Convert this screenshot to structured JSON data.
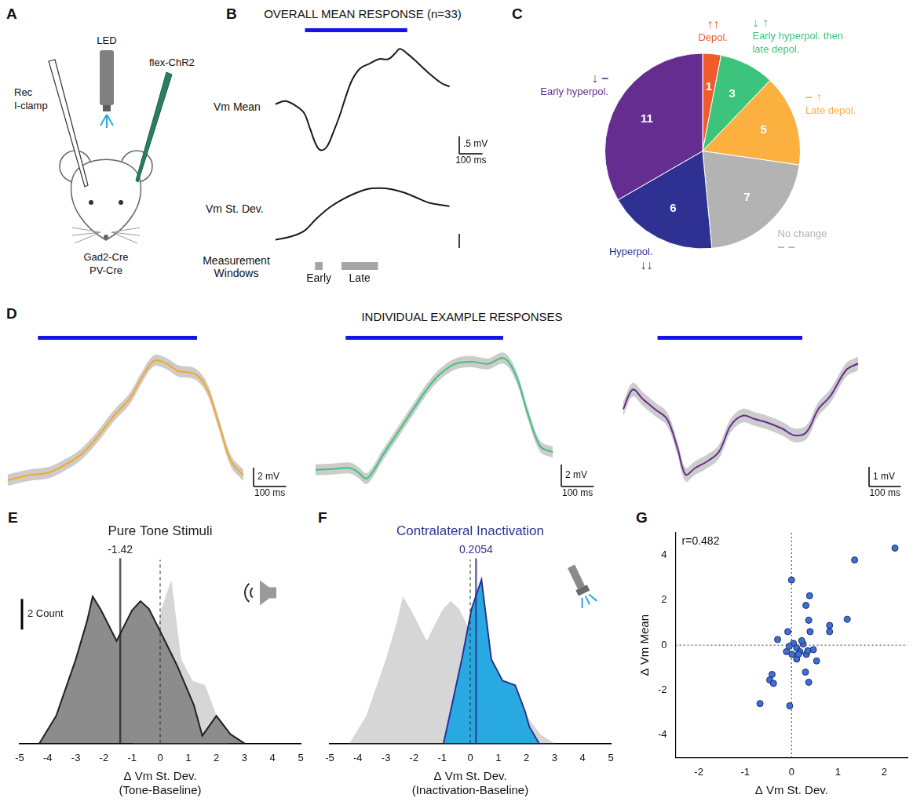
{
  "chart_data": [
    {
      "panel": "A",
      "type": "diagram",
      "labels": {
        "recording": [
          "Rec",
          "I-clamp"
        ],
        "light": "LED",
        "virus": "flex-ChR2",
        "mouse": [
          "Gad2-Cre",
          "PV-Cre"
        ]
      }
    },
    {
      "panel": "B",
      "type": "line",
      "title": "OVERALL MEAN RESPONSE (n=33)",
      "tick_labels": false,
      "xlim": [
        -130,
        630
      ],
      "stimulus": [
        0,
        440
      ],
      "series": [
        {
          "name": "Vm Mean",
          "color": "#1a1a1a",
          "ylim": [
            -1.5,
            1.8
          ],
          "x": [
            -127,
            -86,
            -46,
            -5,
            22,
            49,
            70,
            95,
            122,
            149,
            176,
            203,
            238,
            278,
            319,
            359,
            386,
            408,
            441,
            481,
            535,
            589,
            622
          ],
          "values": [
            0,
            0.09,
            -0.02,
            -0.24,
            -0.7,
            -1.17,
            -1.31,
            -1.2,
            -0.8,
            -0.33,
            0.22,
            0.69,
            1.02,
            1.15,
            1.28,
            1.28,
            1.43,
            1.57,
            1.43,
            1.2,
            0.87,
            0.59,
            0.5
          ],
          "scale_bar": {
            "x": 100,
            "y": 0.5,
            "x_label": "100 ms",
            "y_label": ".5 mV"
          }
        },
        {
          "name": "Vm St. Dev.",
          "color": "#1a1a1a",
          "ylim": [
            0.8,
            2.1
          ],
          "x": [
            -127,
            -59,
            -5,
            49,
            103,
            157,
            211,
            265,
            319,
            373,
            427,
            481,
            535,
            622
          ],
          "values": [
            1.0,
            1.06,
            1.15,
            1.37,
            1.56,
            1.7,
            1.81,
            1.89,
            1.91,
            1.89,
            1.83,
            1.74,
            1.65,
            1.59
          ],
          "scale_bar": {
            "y": 0.25
          }
        }
      ],
      "windows_label": "Measurement Windows",
      "windows": [
        {
          "name": "Early",
          "range": [
            43,
            76
          ]
        },
        {
          "name": "Late",
          "range": [
            157,
            314
          ]
        }
      ]
    },
    {
      "panel": "C",
      "type": "pie",
      "data_labels": true,
      "categories": [
        "Depol.",
        "Early hyperpol. then late depol.",
        "Late depol.",
        "No change",
        "Hyperpol.",
        "Early hyperpol."
      ],
      "values": [
        1,
        3,
        5,
        7,
        6,
        11
      ],
      "colors": [
        "#f15a2b",
        "#3cc47c",
        "#fbb040",
        "#b3b3b3",
        "#2e3192",
        "#662d91"
      ],
      "arrows": [
        "↑↑",
        "↓ ↑",
        "– ↑",
        "– –",
        "↓↓",
        "↓ –"
      ]
    },
    {
      "panel": "D",
      "type": "line",
      "title": "INDIVIDUAL EXAMPLE RESPONSES",
      "tick_labels": false,
      "charts": [
        {
          "color": "#f7a823",
          "stimulus": [
            0,
            490
          ],
          "xlim": [
            -95,
            640
          ],
          "ylim": [
            -1,
            14
          ],
          "x": [
            -93,
            -30,
            33,
            83,
            133,
            183,
            233,
            283,
            320,
            358,
            395,
            433,
            483,
            520,
            558,
            595,
            633
          ],
          "values": [
            0,
            0.52,
            0.81,
            1.63,
            2.74,
            4.59,
            6.81,
            8.67,
            10.9,
            12.7,
            12.4,
            11.6,
            11.3,
            9.8,
            5.9,
            2,
            0.52
          ],
          "error": [
            0.6,
            0.6,
            0.6,
            0.6,
            0.6,
            0.6,
            0.6,
            0.6,
            0.6,
            0.6,
            0.6,
            0.6,
            0.6,
            0.6,
            0.6,
            0.6,
            0.6
          ],
          "scale_bar": {
            "x": 100,
            "y": 2,
            "x_label": "100 ms",
            "y_label": "2 mV"
          }
        },
        {
          "color": "#3cc47c",
          "stimulus": [
            0,
            485
          ],
          "xlim": [
            -95,
            640
          ],
          "ylim": [
            -1.8,
            11
          ],
          "x": [
            -93,
            -38,
            13,
            38,
            63,
            83,
            113,
            163,
            213,
            250,
            288,
            338,
            388,
            438,
            488,
            525,
            563,
            600,
            638
          ],
          "values": [
            0,
            0.07,
            0.15,
            -0.22,
            -0.81,
            -0.22,
            1.26,
            3.48,
            5.7,
            7.3,
            8.6,
            9.6,
            9.8,
            9.6,
            10.1,
            8.5,
            4.9,
            2.1,
            1.6
          ],
          "error": [
            0.5,
            0.5,
            0.5,
            0.5,
            0.5,
            0.5,
            0.5,
            0.5,
            0.5,
            0.5,
            0.5,
            0.5,
            0.5,
            0.5,
            0.5,
            0.5,
            0.5,
            0.5,
            0.5
          ],
          "scale_bar": {
            "x": 100,
            "y": 2,
            "x_label": "100 ms",
            "y_label": "2 mV"
          }
        },
        {
          "color": "#662d91",
          "stimulus": [
            0,
            455
          ],
          "xlim": [
            -110,
            640
          ],
          "ylim": [
            -3.6,
            3.6
          ],
          "x": [
            -108,
            -78,
            -45,
            -8,
            30,
            63,
            88,
            118,
            155,
            193,
            230,
            268,
            305,
            343,
            393,
            430,
            468,
            505,
            543,
            593,
            630
          ],
          "values": [
            0.5,
            1.5,
            1,
            0.5,
            0,
            -1.5,
            -2.83,
            -2.5,
            -2.17,
            -1.67,
            -0.33,
            0.17,
            0,
            -0.17,
            -0.5,
            -0.83,
            -0.67,
            0.5,
            1.17,
            2.5,
            2.83
          ],
          "error": [
            0.35,
            0.35,
            0.35,
            0.35,
            0.35,
            0.35,
            0.35,
            0.35,
            0.35,
            0.35,
            0.35,
            0.35,
            0.35,
            0.35,
            0.35,
            0.35,
            0.35,
            0.35,
            0.35,
            0.35,
            0.35
          ],
          "scale_bar": {
            "x": 100,
            "y": 1,
            "x_label": "100 ms",
            "y_label": "1 mV"
          }
        }
      ]
    },
    {
      "panel": "E",
      "type": "area",
      "title": "Pure Tone Stimuli",
      "color": "#222222",
      "x_label": "Δ Vm St. Dev. (Tone-Baseline)",
      "tick_labels": "x",
      "grid": false,
      "xlim": [
        -5,
        5
      ],
      "xticks": [
        -5,
        -4,
        -3,
        -2,
        -1,
        0,
        1,
        2,
        3,
        4,
        5
      ],
      "ylim": [
        0,
        12
      ],
      "mean": -1.42,
      "reference": 0,
      "scale_bar": {
        "y": 2,
        "y_label": "2 Count"
      },
      "series": [
        {
          "color": "#8c8c8c",
          "x": [
            -4.3,
            -3.7,
            -3,
            -2.6,
            -2.4,
            -2.1,
            -1.55,
            -1,
            -0.7,
            -0.4,
            0.17,
            0.6,
            1.2,
            1.5,
            2,
            2.5,
            3
          ],
          "values": [
            0,
            1.8,
            5.5,
            8,
            9.6,
            8.7,
            6.7,
            8.7,
            9.3,
            8.8,
            6.7,
            5.1,
            2.5,
            0.5,
            1.8,
            0.6,
            0
          ]
        },
        {
          "color": "#d6d6d6",
          "x": [
            -0.95,
            -0.7,
            -0.3,
            0.05,
            0.4,
            0.75,
            1.15,
            1.6,
            1.95,
            2.1,
            2.45
          ],
          "values": [
            0,
            2.1,
            5.5,
            8.8,
            10.7,
            5.5,
            4.1,
            3.8,
            2.1,
            1.1,
            0
          ]
        }
      ]
    },
    {
      "panel": "F",
      "type": "area",
      "title": "Contralateral Inactivation",
      "color": "#2e3192",
      "x_label": "Δ Vm St. Dev. (Inactivation-Baseline)",
      "tick_labels": "x",
      "grid": false,
      "xlim": [
        -5,
        5
      ],
      "xticks": [
        -5,
        -4,
        -3,
        -2,
        -1,
        0,
        1,
        2,
        3,
        4,
        5
      ],
      "ylim": [
        0,
        12
      ],
      "mean": 0.2054,
      "reference": 0,
      "series": [
        {
          "color": "#29a9e1",
          "x": [
            -0.95,
            -0.7,
            -0.3,
            0.05,
            0.4,
            0.75,
            1.15,
            1.6,
            1.95,
            2.1,
            2.45
          ],
          "values": [
            0,
            2.1,
            5.5,
            8.8,
            10.7,
            5.5,
            4.1,
            3.8,
            2.1,
            1.1,
            0
          ]
        },
        {
          "color": "#d6d6d6",
          "x": [
            -4.3,
            -3.7,
            -3,
            -2.6,
            -2.4,
            -2.1,
            -1.55,
            -1,
            -0.7,
            -0.4,
            0.17,
            0.6,
            1.2,
            1.5,
            2,
            2.5,
            3
          ],
          "values": [
            0,
            1.8,
            5.5,
            8,
            9.6,
            8.7,
            6.7,
            8.7,
            9.3,
            8.8,
            6.7,
            5.1,
            2.5,
            0.5,
            1.8,
            0.6,
            0
          ]
        }
      ]
    },
    {
      "panel": "G",
      "type": "scatter",
      "x_label": "Δ Vm St. Dev.",
      "y_label": "Δ Vm Mean",
      "annotation": "r=0.482",
      "color": "#3d6fd4",
      "marker": "circle",
      "grid": false,
      "xlim": [
        -2.5,
        2.5
      ],
      "xticks": [
        -2,
        -1,
        0,
        1,
        2
      ],
      "ylim": [
        -5,
        5
      ],
      "yticks": [
        -4,
        -2,
        0,
        2,
        4
      ],
      "x_reference": 0,
      "y_reference": 0,
      "x": [
        2.23,
        1.36,
        1.2,
        0.82,
        0.82,
        0.39,
        0.31,
        0.37,
        0.4,
        0,
        -0.08,
        -0.3,
        0.04,
        0.11,
        0.18,
        0.01,
        0.25,
        0.32,
        0.47,
        0.54,
        0.3,
        0.37,
        0.11,
        -0.11,
        -0.42,
        -0.47,
        -0.39,
        -0.04,
        -0.68,
        0.22,
        -0.05,
        0.15,
        0.35
      ],
      "values": [
        4.32,
        3.79,
        1.15,
        0.88,
        0.6,
        2.2,
        1.77,
        1.11,
        0.6,
        2.9,
        0.6,
        0.25,
        0.08,
        -0.12,
        -0.29,
        -0.41,
        0.05,
        -0.41,
        -0.2,
        -0.7,
        -1.2,
        -1.65,
        -0.62,
        -0.29,
        -1.3,
        -1.55,
        -1.7,
        -2.7,
        -2.6,
        0.2,
        -0.05,
        -0.4,
        -0.25
      ]
    }
  ]
}
